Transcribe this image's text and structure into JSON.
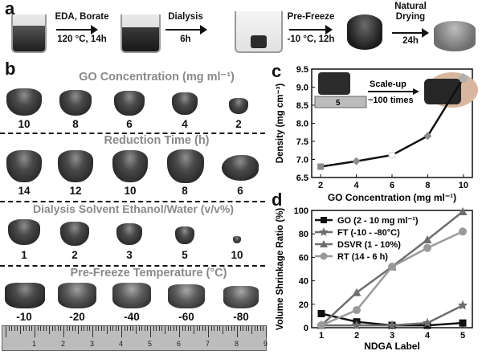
{
  "panel_a": {
    "label": "a",
    "steps": [
      {
        "top": "EDA, Borate",
        "bottom": "120 °C, 14h"
      },
      {
        "top": "Dialysis",
        "bottom": "6h"
      },
      {
        "top": "Pre-Freeze",
        "bottom": "-10 °C, 12h"
      },
      {
        "top": "Natural Drying",
        "bottom": "24h"
      }
    ]
  },
  "panel_b": {
    "label": "b",
    "rows": [
      {
        "title": "GO Concentration (mg ml⁻¹)",
        "labels": [
          "10",
          "8",
          "6",
          "4",
          "2"
        ]
      },
      {
        "title": "Reduction Time (h)",
        "labels": [
          "14",
          "12",
          "10",
          "8",
          "6"
        ]
      },
      {
        "title": "Dialysis Solvent Ethanol/Water (v/v%)",
        "labels": [
          "1",
          "2",
          "3",
          "5",
          "10"
        ]
      },
      {
        "title": "Pre-Freeze Temperature (°C)",
        "labels": [
          "-10",
          "-20",
          "-40",
          "-60",
          "-80"
        ]
      }
    ],
    "ruler_labels": [
      "1",
      "2",
      "3",
      "4",
      "5",
      "6",
      "7",
      "8",
      "9"
    ]
  },
  "chart_data": [
    {
      "label": "c",
      "type": "line",
      "xlabel": "GO Concentration (mg ml⁻¹)",
      "ylabel": "Density (mg cm⁻³)",
      "x": [
        2,
        4,
        6,
        8,
        10
      ],
      "y": [
        6.8,
        6.95,
        7.12,
        7.65,
        9.25
      ],
      "xlim": [
        1.5,
        10.5
      ],
      "ylim": [
        6.5,
        9.5
      ],
      "xticks": [
        "2",
        "4",
        "6",
        "8",
        "10"
      ],
      "yticks": [
        "6.5",
        "7.0",
        "7.5",
        "8.0",
        "8.5",
        "9.0",
        "9.5"
      ],
      "inset": {
        "scale_up_text": "Scale-up",
        "times_text": "~100 times",
        "ruler_mark": "5"
      }
    },
    {
      "label": "d",
      "type": "line",
      "xlabel": "NDGA Label",
      "ylabel": "Volume Shrinkage Ratio (%)",
      "categories": [
        "1",
        "2",
        "3",
        "4",
        "5"
      ],
      "ylim": [
        0,
        100
      ],
      "yticks": [
        "0",
        "20",
        "40",
        "60",
        "80",
        "100"
      ],
      "series": [
        {
          "name": "GO (2 - 10 mg ml⁻¹)",
          "marker": "square",
          "color": "#111111",
          "values": [
            12,
            5,
            2,
            2,
            4
          ]
        },
        {
          "name": "FT (-10 - -80°C)",
          "marker": "star",
          "color": "#6e6e6e",
          "values": [
            2,
            2,
            2,
            4,
            19
          ]
        },
        {
          "name": "DSVR (1 - 10%)",
          "marker": "triangle",
          "color": "#6e6e6e",
          "values": [
            2,
            30,
            52,
            75,
            99
          ]
        },
        {
          "name": "RT (14 - 6 h)",
          "marker": "circle",
          "color": "#9a9a9a",
          "values": [
            2,
            15,
            52,
            68,
            82
          ]
        }
      ]
    }
  ]
}
